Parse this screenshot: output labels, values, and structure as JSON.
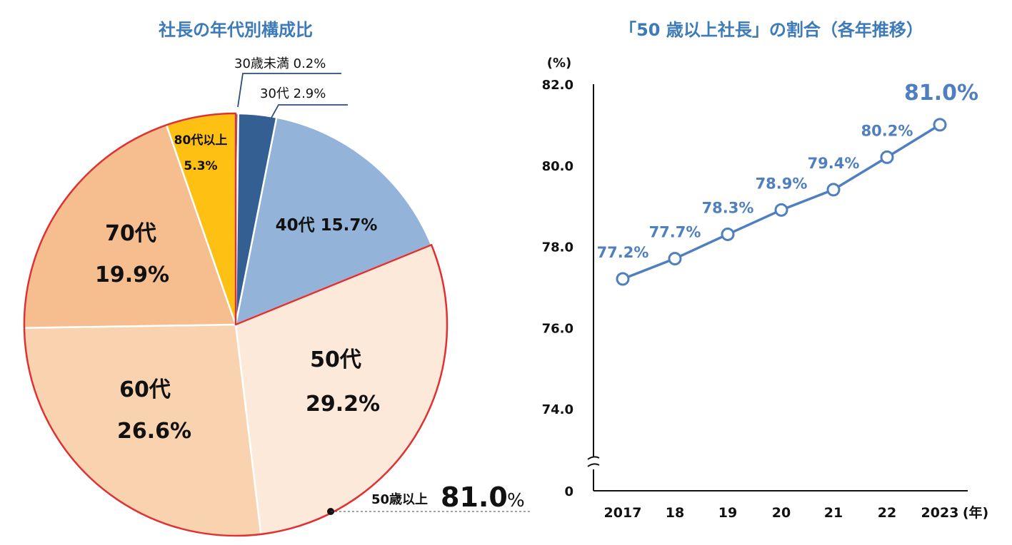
{
  "chart_data": [
    {
      "type": "pie",
      "title": "社長の年代別構成比",
      "slices": [
        {
          "label": "30歳未満",
          "value": 0.2,
          "value_label": "0.2%",
          "color": "#2a4f7e"
        },
        {
          "label": "30代",
          "value": 2.9,
          "value_label": "2.9%",
          "color": "#345f92"
        },
        {
          "label": "40代",
          "value": 15.7,
          "value_label": "15.7%",
          "color": "#93b3d9"
        },
        {
          "label": "50代",
          "value": 29.2,
          "value_label": "29.2%",
          "color": "#fce9d9"
        },
        {
          "label": "60代",
          "value": 26.6,
          "value_label": "26.6%",
          "color": "#f9d2b0"
        },
        {
          "label": "70代",
          "value": 19.9,
          "value_label": "19.9%",
          "color": "#f6bd8f"
        },
        {
          "label": "80代以上",
          "value": 5.3,
          "value_label": "5.3%",
          "color": "#fdc013"
        }
      ],
      "highlight": {
        "label": "50歳以上",
        "value": "81.0",
        "unit": "%",
        "color": "#e03030"
      }
    },
    {
      "type": "line",
      "title": "「50 歳以上社長」の割合（各年推移）",
      "ylabel": "(%)",
      "xunit": "(年)",
      "x": [
        "2017",
        "18",
        "19",
        "20",
        "21",
        "22",
        "2023"
      ],
      "ytick_labels": [
        "0",
        "74.0",
        "76.0",
        "78.0",
        "80.0",
        "82.0"
      ],
      "series": [
        {
          "values": [
            77.2,
            77.7,
            78.3,
            78.9,
            79.4,
            80.2,
            81.0
          ],
          "labels": [
            "77.2%",
            "77.7%",
            "78.3%",
            "78.9%",
            "79.4%",
            "80.2%",
            "81.0%"
          ],
          "color": "#4f7fbf"
        }
      ],
      "ylim": [
        74.0,
        82.0
      ],
      "axis_break": true,
      "grid": false
    }
  ]
}
